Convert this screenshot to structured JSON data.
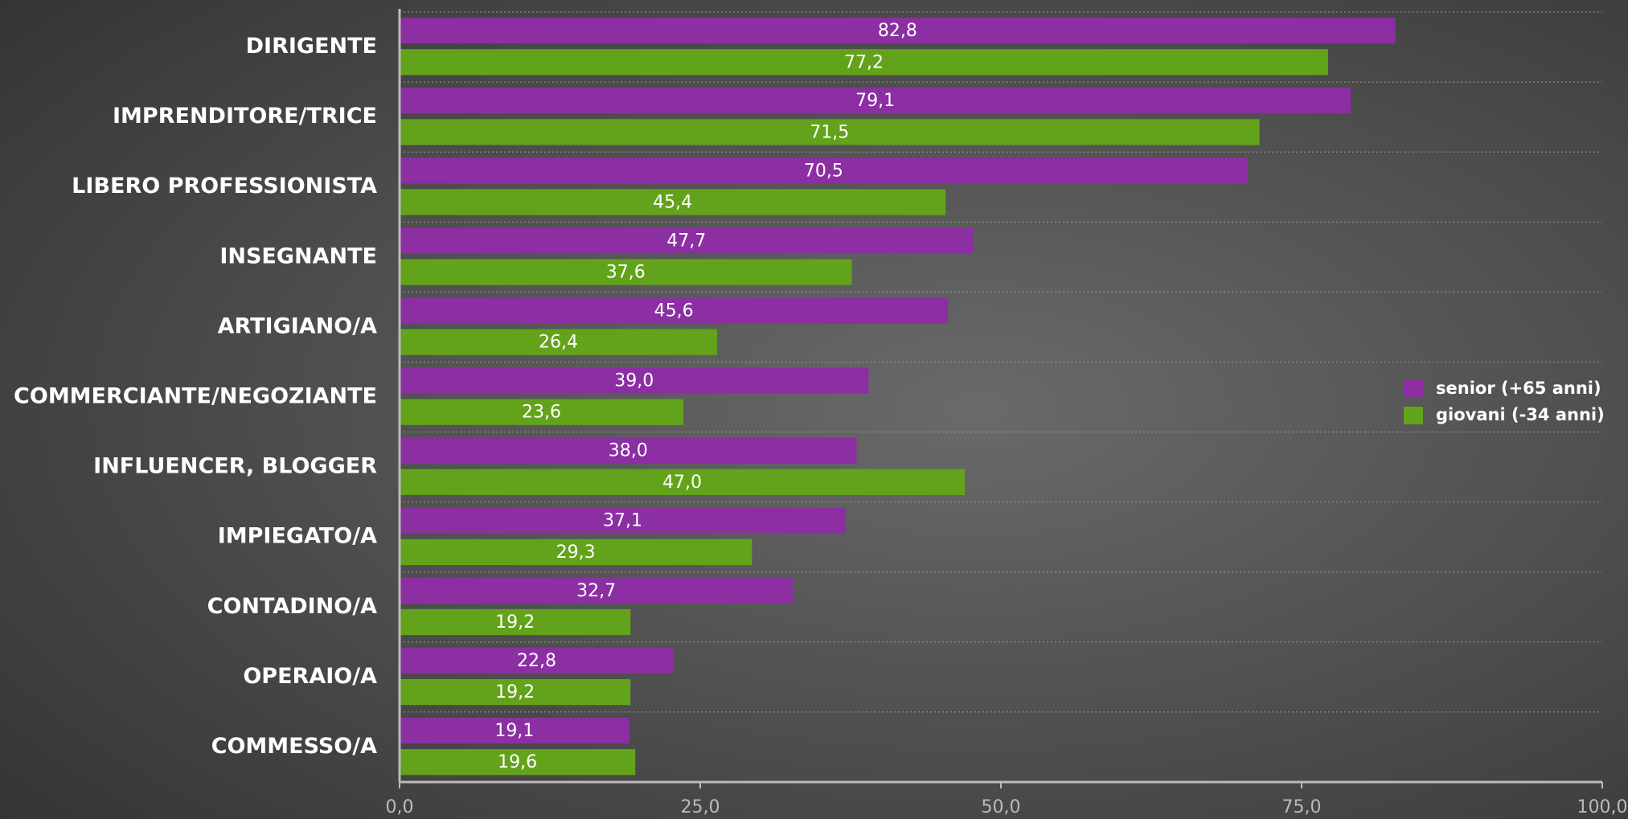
{
  "chart_data": {
    "type": "bar",
    "orientation": "horizontal",
    "categories": [
      "DIRIGENTE",
      "IMPRENDITORE/TRICE",
      "LIBERO PROFESSIONISTA",
      "INSEGNANTE",
      "ARTIGIANO/A",
      "COMMERCIANTE/NEGOZIANTE",
      "INFLUENCER, BLOGGER",
      "IMPIEGATO/A",
      "CONTADINO/A",
      "OPERAIO/A",
      "COMMESSO/A"
    ],
    "series": [
      {
        "name": "senior (+65 anni)",
        "color": "#8b2fa3",
        "values": [
          82.8,
          79.1,
          70.5,
          47.7,
          45.6,
          39.0,
          38.0,
          37.1,
          32.7,
          22.8,
          19.1
        ],
        "value_labels": [
          "82,8",
          "79,1",
          "70,5",
          "47,7",
          "45,6",
          "39,0",
          "38,0",
          "37,1",
          "32,7",
          "22,8",
          "19,1"
        ]
      },
      {
        "name": "giovani (-34 anni)",
        "color": "#63a31b",
        "values": [
          77.2,
          71.5,
          45.4,
          37.6,
          26.4,
          23.6,
          47.0,
          29.3,
          19.2,
          19.2,
          19.6
        ],
        "value_labels": [
          "77,2",
          "71,5",
          "45,4",
          "37,6",
          "26,4",
          "23,6",
          "47,0",
          "29,3",
          "19,2",
          "19,2",
          "19,6"
        ]
      }
    ],
    "xlim": [
      0,
      100
    ],
    "xticks": [
      {
        "value": 0,
        "label": "0,0"
      },
      {
        "value": 25,
        "label": "25,0"
      },
      {
        "value": 50,
        "label": "50,0"
      },
      {
        "value": 75,
        "label": "75,0"
      },
      {
        "value": 100,
        "label": "100,0"
      }
    ],
    "legend": "right"
  }
}
